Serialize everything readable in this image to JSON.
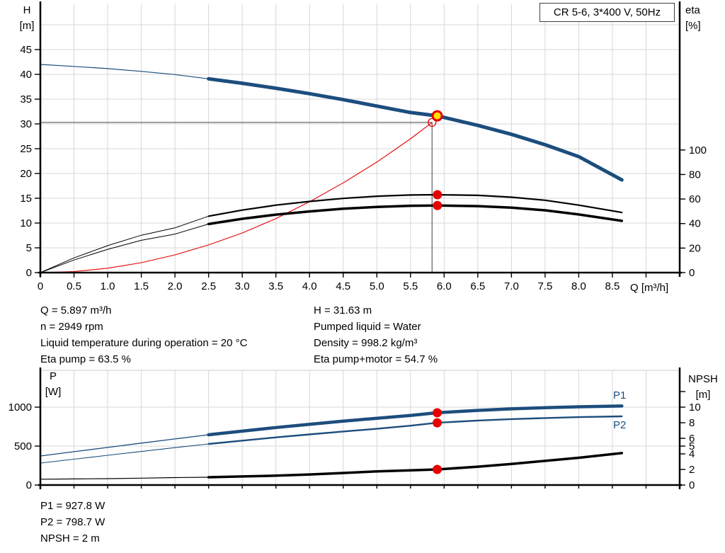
{
  "title_box": "CR 5-6, 3*400 V, 50Hz",
  "axis_labels": {
    "h": [
      "H",
      "[m]"
    ],
    "eta": [
      "eta",
      "[%]"
    ],
    "q": "Q [m³/h]",
    "p": [
      "P",
      "[W]"
    ],
    "npsh": [
      "NPSH",
      "[m]"
    ]
  },
  "curve_labels": {
    "p1": "P1",
    "p2": "P2"
  },
  "info_left": [
    "Q = 5.897 m³/h",
    "n = 2949 rpm",
    "Liquid temperature during operation = 20 °C",
    "Eta pump = 63.5 %"
  ],
  "info_right": [
    "H = 31.63 m",
    "Pumped liquid = Water",
    "Density = 998.2 kg/m³",
    "Eta pump+motor = 54.7 %"
  ],
  "info_bottom": [
    "P1 = 927.8 W",
    "P2 = 798.7 W",
    "NPSH = 2 m"
  ],
  "colors": {
    "blue": "#1c4d7d",
    "red": "#e60000",
    "black": "#000000",
    "grid": "#d7d7d7",
    "yellow": "#ffe100",
    "crosshair": "#404040",
    "axis": "#000000"
  },
  "chart_data": [
    {
      "id": "top",
      "type": "line",
      "title": "CR 5-6, 3*400 V, 50Hz",
      "x": {
        "label": "Q [m³/h]",
        "min": 0,
        "max": 9.5,
        "ticks": [
          [
            0,
            "0"
          ],
          [
            0.5,
            "0.5"
          ],
          [
            1,
            "1.0"
          ],
          [
            1.5,
            "1.5"
          ],
          [
            2,
            "2.0"
          ],
          [
            2.5,
            "2.5"
          ],
          [
            3,
            "3.0"
          ],
          [
            3.5,
            "3.5"
          ],
          [
            4,
            "4.0"
          ],
          [
            4.5,
            "4.5"
          ],
          [
            5,
            "5.0"
          ],
          [
            5.5,
            "5.5"
          ],
          [
            6,
            "6.0"
          ],
          [
            6.5,
            "6.5"
          ],
          [
            7,
            "7.0"
          ],
          [
            7.5,
            "7.5"
          ],
          [
            8,
            "8.0"
          ],
          [
            8.5,
            "8.5"
          ],
          [
            9,
            ""
          ]
        ]
      },
      "y_left": {
        "label": "H [m]",
        "min": 0,
        "max": 54,
        "ticks": [
          [
            0,
            "0"
          ],
          [
            5,
            "5"
          ],
          [
            10,
            "10"
          ],
          [
            15,
            "15"
          ],
          [
            20,
            "20"
          ],
          [
            25,
            "25"
          ],
          [
            30,
            "30"
          ],
          [
            35,
            "35"
          ],
          [
            40,
            "40"
          ],
          [
            45,
            "45"
          ]
        ],
        "grid": [
          5,
          10,
          15,
          20,
          25,
          30,
          35,
          40,
          45,
          50
        ]
      },
      "y_right": {
        "label": "eta [%]",
        "min": 0,
        "max": 218,
        "ticks": [
          [
            0,
            "0"
          ],
          [
            20,
            "20"
          ],
          [
            40,
            "40"
          ],
          [
            60,
            "60"
          ],
          [
            80,
            "80"
          ],
          [
            100,
            "100"
          ]
        ]
      },
      "grid_x": [
        0.5,
        1,
        1.5,
        2,
        2.5,
        3,
        3.5,
        4,
        4.5,
        5,
        5.5,
        6,
        6.5,
        7,
        7.5,
        8,
        8.5,
        9
      ],
      "series": [
        {
          "name": "system-curve",
          "axis": "H",
          "color": "red",
          "split": 99,
          "thin": 1.1,
          "thick": 1.1,
          "points": [
            [
              0,
              0
            ],
            [
              0.5,
              0.22
            ],
            [
              1,
              0.89
            ],
            [
              1.5,
              2.0
            ],
            [
              2,
              3.57
            ],
            [
              2.5,
              5.58
            ],
            [
              3,
              8.0
            ],
            [
              3.5,
              10.9
            ],
            [
              4,
              14.3
            ],
            [
              4.5,
              18.1
            ],
            [
              5,
              22.3
            ],
            [
              5.5,
              27.0
            ],
            [
              5.82,
              30.3
            ]
          ]
        },
        {
          "name": "eta-pump-curve",
          "axis": "eta",
          "color": "black",
          "split": 2.5,
          "thin": 1,
          "thick": 2.2,
          "points": [
            [
              0,
              0
            ],
            [
              0.5,
              12
            ],
            [
              1,
              22
            ],
            [
              1.5,
              30.5
            ],
            [
              2,
              36.5
            ],
            [
              2.5,
              46
            ],
            [
              3,
              51
            ],
            [
              3.5,
              55
            ],
            [
              4,
              58
            ],
            [
              4.5,
              60.5
            ],
            [
              5,
              62.3
            ],
            [
              5.5,
              63.3
            ],
            [
              5.897,
              63.5
            ],
            [
              6.5,
              63
            ],
            [
              7,
              61.5
            ],
            [
              7.5,
              59
            ],
            [
              8,
              55
            ],
            [
              8.64,
              49
            ]
          ]
        },
        {
          "name": "eta-pump-motor-curve",
          "axis": "eta",
          "color": "black",
          "split": 2.5,
          "thin": 1,
          "thick": 3.5,
          "points": [
            [
              0,
              0
            ],
            [
              0.5,
              10.3
            ],
            [
              1,
              19
            ],
            [
              1.5,
              26.3
            ],
            [
              2,
              31.4
            ],
            [
              2.5,
              39.6
            ],
            [
              3,
              43.9
            ],
            [
              3.5,
              47.3
            ],
            [
              4,
              49.9
            ],
            [
              4.5,
              52.1
            ],
            [
              5,
              53.6
            ],
            [
              5.5,
              54.5
            ],
            [
              5.897,
              54.7
            ],
            [
              6.5,
              54.2
            ],
            [
              7,
              53
            ],
            [
              7.5,
              50.8
            ],
            [
              8,
              47.4
            ],
            [
              8.64,
              42.2
            ]
          ]
        },
        {
          "name": "pump-hq-curve",
          "axis": "H",
          "color": "blue",
          "split": 2.5,
          "thin": 1.2,
          "thick": 5,
          "points": [
            [
              0,
              42.0
            ],
            [
              0.5,
              41.6
            ],
            [
              1,
              41.15
            ],
            [
              1.5,
              40.6
            ],
            [
              2,
              39.95
            ],
            [
              2.5,
              39.1
            ],
            [
              3,
              38.2
            ],
            [
              3.5,
              37.2
            ],
            [
              4,
              36.1
            ],
            [
              4.5,
              34.9
            ],
            [
              5,
              33.6
            ],
            [
              5.5,
              32.3
            ],
            [
              5.897,
              31.63
            ],
            [
              6.5,
              29.7
            ],
            [
              7,
              27.9
            ],
            [
              7.5,
              25.8
            ],
            [
              8,
              23.4
            ],
            [
              8.64,
              18.7
            ]
          ]
        }
      ],
      "markers": [
        {
          "type": "crosshair",
          "q": 5.82,
          "axis": "H",
          "v": 30.3
        },
        {
          "type": "circle-open",
          "q": 5.82,
          "axis": "H",
          "v": 30.3,
          "r": 5.5
        },
        {
          "type": "dot",
          "q": 5.9,
          "axis": "eta",
          "v": 63.5,
          "r": 6.5
        },
        {
          "type": "dot",
          "q": 5.9,
          "axis": "eta",
          "v": 54.7,
          "r": 6.5
        },
        {
          "type": "duty-point",
          "q": 5.897,
          "axis": "H",
          "v": 31.63,
          "r": 6.5
        }
      ]
    },
    {
      "id": "bottom",
      "type": "line",
      "x": {
        "label": "",
        "min": 0,
        "max": 9.5,
        "ticks": [
          [
            0,
            ""
          ],
          [
            0.5,
            ""
          ],
          [
            1,
            ""
          ],
          [
            1.5,
            ""
          ],
          [
            2,
            ""
          ],
          [
            2.5,
            ""
          ],
          [
            3,
            ""
          ],
          [
            3.5,
            ""
          ],
          [
            4,
            ""
          ],
          [
            4.5,
            ""
          ],
          [
            5,
            ""
          ],
          [
            5.5,
            ""
          ],
          [
            6,
            ""
          ],
          [
            6.5,
            ""
          ],
          [
            7,
            ""
          ],
          [
            7.5,
            ""
          ],
          [
            8,
            ""
          ],
          [
            8.5,
            ""
          ],
          [
            9,
            ""
          ]
        ]
      },
      "y_left": {
        "label": "P [W]",
        "min": 0,
        "max": 1473,
        "ticks": [
          [
            0,
            "0"
          ],
          [
            500,
            "500"
          ],
          [
            1000,
            "1000"
          ]
        ],
        "grid": [
          500,
          1000
        ]
      },
      "y_right": {
        "label": "NPSH [m]",
        "min": 0,
        "max": 14.7,
        "ticks": [
          [
            0,
            "0"
          ],
          [
            2,
            "2"
          ],
          [
            4,
            "4"
          ],
          [
            5,
            "5"
          ],
          [
            6,
            "6"
          ],
          [
            8,
            "8"
          ],
          [
            10,
            "10"
          ],
          [
            12,
            ""
          ]
        ]
      },
      "grid_x": [
        0.5,
        1,
        1.5,
        2,
        2.5,
        3,
        3.5,
        4,
        4.5,
        5,
        5.5,
        6,
        6.5,
        7,
        7.5,
        8,
        8.5,
        9
      ],
      "border_top": true,
      "series": [
        {
          "name": "npsh-curve",
          "axis": "NPSH",
          "color": "black",
          "split": 2.5,
          "thin": 1.2,
          "thick": 3.5,
          "points": [
            [
              0,
              0.75
            ],
            [
              0.5,
              0.78
            ],
            [
              1,
              0.82
            ],
            [
              1.5,
              0.88
            ],
            [
              2,
              0.95
            ],
            [
              2.5,
              1.0
            ],
            [
              3,
              1.1
            ],
            [
              3.5,
              1.2
            ],
            [
              4,
              1.35
            ],
            [
              4.5,
              1.55
            ],
            [
              5,
              1.75
            ],
            [
              5.5,
              1.88
            ],
            [
              5.897,
              2.0
            ],
            [
              6.5,
              2.35
            ],
            [
              7,
              2.7
            ],
            [
              7.5,
              3.1
            ],
            [
              8,
              3.5
            ],
            [
              8.64,
              4.1
            ]
          ]
        },
        {
          "name": "p2-curve",
          "axis": "P",
          "color": "blue",
          "split": 2.5,
          "thin": 1.1,
          "thick": 2.4,
          "points": [
            [
              0,
              282
            ],
            [
              0.5,
              332
            ],
            [
              1,
              382
            ],
            [
              1.5,
              431
            ],
            [
              2,
              480
            ],
            [
              2.5,
              527
            ],
            [
              3,
              570
            ],
            [
              3.5,
              612
            ],
            [
              4,
              650
            ],
            [
              4.5,
              687
            ],
            [
              5,
              722
            ],
            [
              5.5,
              762
            ],
            [
              5.897,
              799
            ],
            [
              6.5,
              828
            ],
            [
              7,
              846
            ],
            [
              7.5,
              860
            ],
            [
              8,
              872
            ],
            [
              8.64,
              882
            ]
          ]
        },
        {
          "name": "p1-curve",
          "axis": "P",
          "color": "blue",
          "split": 2.5,
          "thin": 1.3,
          "thick": 4.5,
          "points": [
            [
              0,
              373
            ],
            [
              0.5,
              428
            ],
            [
              1,
              483
            ],
            [
              1.5,
              538
            ],
            [
              2,
              592
            ],
            [
              2.5,
              645
            ],
            [
              3,
              692
            ],
            [
              3.5,
              738
            ],
            [
              4,
              780
            ],
            [
              4.5,
              820
            ],
            [
              5,
              857
            ],
            [
              5.5,
              893
            ],
            [
              5.897,
              928
            ],
            [
              6.5,
              958
            ],
            [
              7,
              978
            ],
            [
              7.5,
              993
            ],
            [
              8,
              1005
            ],
            [
              8.64,
              1015
            ]
          ]
        }
      ],
      "markers": [
        {
          "type": "dot",
          "q": 5.897,
          "axis": "P",
          "v": 927.8,
          "r": 6.5
        },
        {
          "type": "dot",
          "q": 5.897,
          "axis": "P",
          "v": 798.7,
          "r": 6.5
        },
        {
          "type": "dot",
          "q": 5.897,
          "axis": "NPSH",
          "v": 2,
          "r": 6.5
        }
      ]
    }
  ]
}
